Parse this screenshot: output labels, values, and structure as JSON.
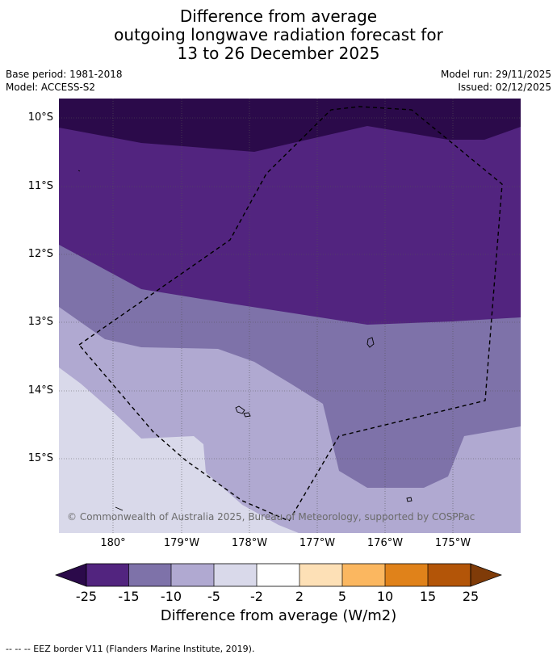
{
  "title": {
    "line1": "Difference from average",
    "line2": "outgoing longwave radiation forecast for",
    "line3": "13 to 26 December 2025"
  },
  "meta": {
    "base_period": "Base period: 1981-2018",
    "model": "Model: ACCESS-S2",
    "model_run": "Model run: 29/11/2025",
    "issued": "Issued: 02/12/2025"
  },
  "map": {
    "lat_labels": [
      "10°S",
      "11°S",
      "12°S",
      "13°S",
      "14°S",
      "15°S"
    ],
    "lon_labels": [
      "180°",
      "179°W",
      "178°W",
      "177°W",
      "176°W",
      "175°W"
    ],
    "copyright": "© Commonwealth of Australia 2025, Bureau of Meteorology, supported by COSPPac"
  },
  "colorbar": {
    "labels": [
      "-25",
      "-15",
      "-10",
      "-5",
      "-2",
      "2",
      "5",
      "10",
      "15",
      "25"
    ],
    "colors": [
      "#2b0a4a",
      "#52247f",
      "#7e72a9",
      "#b0a9d1",
      "#d9d9ea",
      "#ffffff",
      "#fde0b6",
      "#fbb760",
      "#e0821a",
      "#b35508",
      "#7f3b08"
    ],
    "title": "Difference from average (W/m2)"
  },
  "legend": {
    "eez_text": "--  --  -- EEZ border V11 (Flanders Marine Institute, 2019)."
  }
}
